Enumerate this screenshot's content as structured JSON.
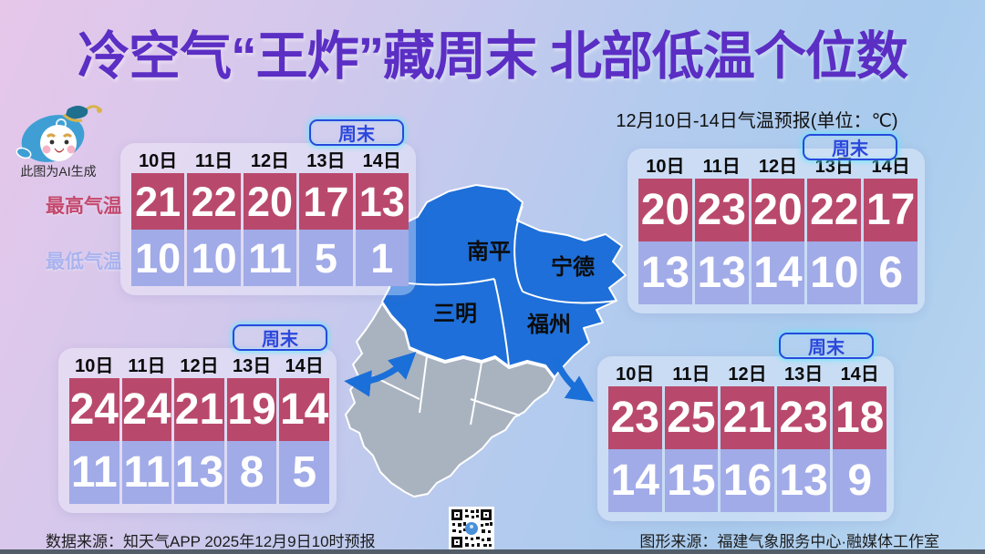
{
  "page": {
    "title": "冷空气“王炸”藏周末 北部低温个位数",
    "subtitle": "12月10日-14日气温预报(单位：℃)",
    "ai_note": "此图为AI生成",
    "weekend_label": "周末",
    "high_label": "最高气温",
    "low_label": "最低气温"
  },
  "footer": {
    "data_source": "数据来源：知天气APP  2025年12月9日10时预报",
    "graphic_source": "图形来源：福建气象服务中心·融媒体工作室"
  },
  "map": {
    "regions": [
      {
        "name": "南平"
      },
      {
        "name": "宁德"
      },
      {
        "name": "三明"
      },
      {
        "name": "福州"
      }
    ]
  },
  "colors": {
    "title_purple": "#5b2ec4",
    "high_cell": "#b9496c",
    "low_cell": "#a1abe8",
    "badge_blue": "#2a48dc",
    "badge_glow_cyan": "#5fe9ff",
    "map_blue": "#1e6fd9",
    "map_gray": "#a9b3c0",
    "arrow_blue": "#1b6fd8",
    "high_label_rose": "#c5486e",
    "low_label_periwinkle": "#a9b3ef"
  },
  "chart_data": [
    {
      "type": "table",
      "position": "top-left",
      "categories": [
        "10日",
        "11日",
        "12日",
        "13日",
        "14日"
      ],
      "series": [
        {
          "name": "最高气温",
          "values": [
            21,
            22,
            20,
            17,
            13
          ]
        },
        {
          "name": "最低气温",
          "values": [
            10,
            10,
            11,
            5,
            1
          ]
        }
      ]
    },
    {
      "type": "table",
      "position": "top-right",
      "categories": [
        "10日",
        "11日",
        "12日",
        "13日",
        "14日"
      ],
      "series": [
        {
          "name": "最高气温",
          "values": [
            20,
            23,
            20,
            22,
            17
          ]
        },
        {
          "name": "最低气温",
          "values": [
            13,
            13,
            14,
            10,
            6
          ]
        }
      ]
    },
    {
      "type": "table",
      "position": "bottom-left",
      "categories": [
        "10日",
        "11日",
        "12日",
        "13日",
        "14日"
      ],
      "series": [
        {
          "name": "最高气温",
          "values": [
            24,
            24,
            21,
            19,
            14
          ]
        },
        {
          "name": "最低气温",
          "values": [
            11,
            11,
            13,
            8,
            5
          ]
        }
      ]
    },
    {
      "type": "table",
      "position": "bottom-right",
      "categories": [
        "10日",
        "11日",
        "12日",
        "13日",
        "14日"
      ],
      "series": [
        {
          "name": "最高气温",
          "values": [
            23,
            25,
            21,
            23,
            18
          ]
        },
        {
          "name": "最低气温",
          "values": [
            14,
            15,
            16,
            13,
            9
          ]
        }
      ]
    }
  ]
}
